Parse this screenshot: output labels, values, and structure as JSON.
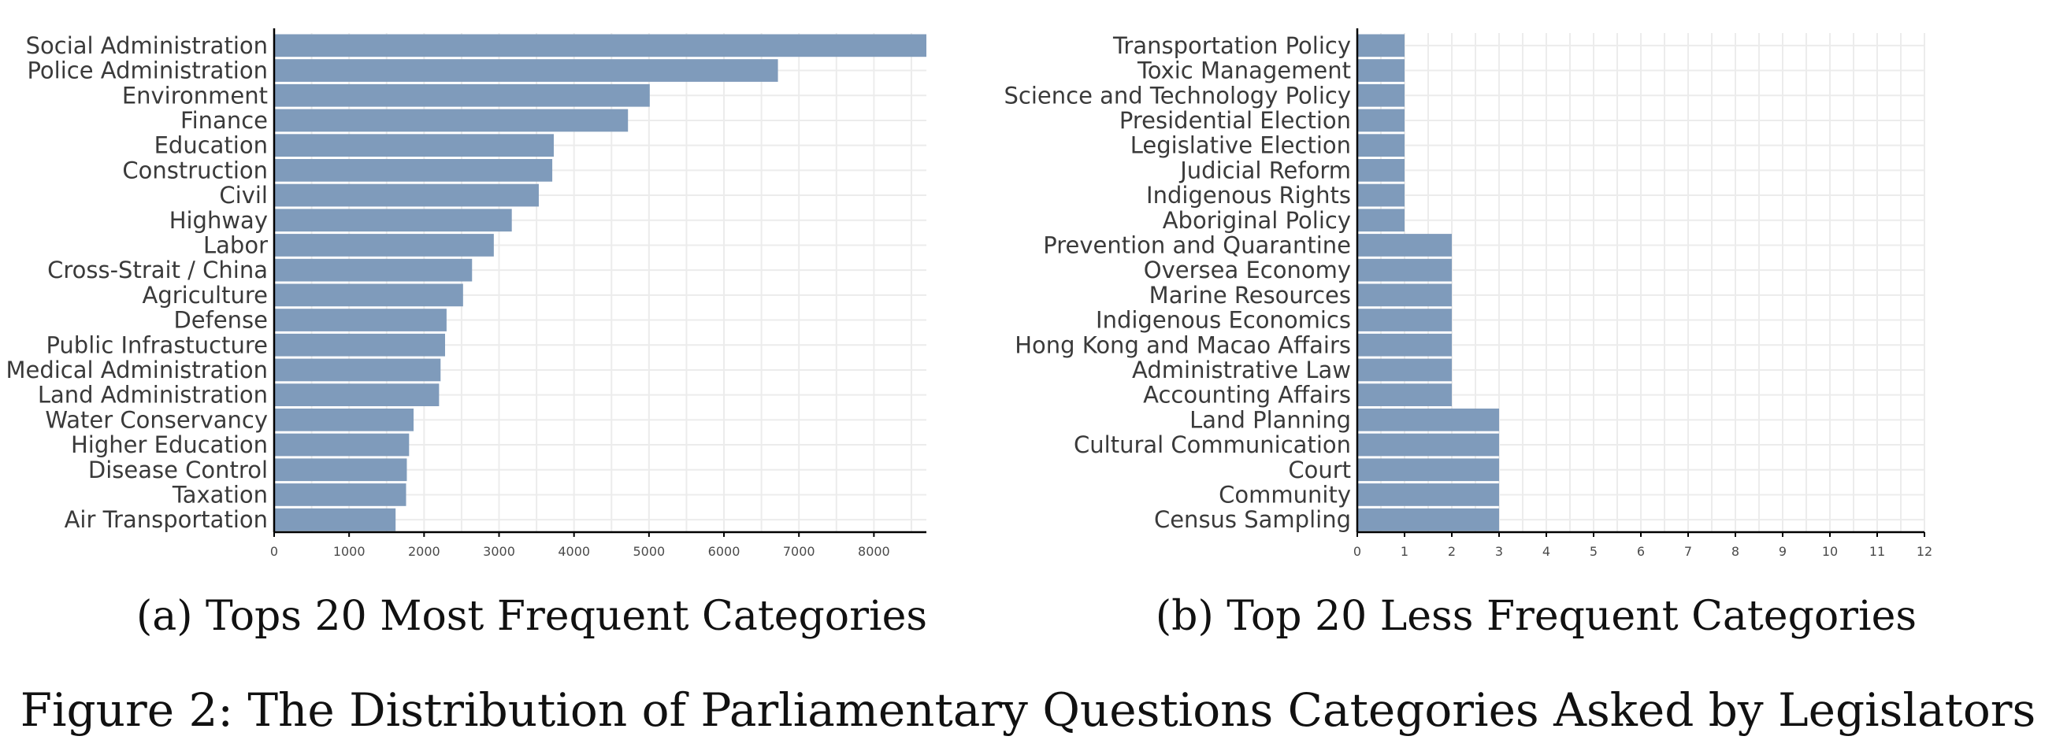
{
  "figure_caption": "Figure 2: The Distribution of Parliamentary Questions Categories Asked by Legislators",
  "chart_data": [
    {
      "type": "bar",
      "orientation": "horizontal",
      "caption": "(a) Tops 20 Most Frequent Categories",
      "title": "",
      "xlabel": "",
      "ylabel": "",
      "xlim": [
        0,
        8700
      ],
      "x_ticks": [
        0,
        1000,
        2000,
        3000,
        4000,
        5000,
        6000,
        7000,
        8000
      ],
      "grid": true,
      "bar_color": "#7f9bbb",
      "categories": [
        "Social Administration",
        "Police Administration",
        "Environment",
        "Finance",
        "Education",
        "Construction",
        "Civil",
        "Highway",
        "Labor",
        "Cross-Strait / China",
        "Agriculture",
        "Defense",
        "Public Infrastucture",
        "Medical Administration",
        "Land Administration",
        "Water Conservancy",
        "Higher Education",
        "Disease Control",
        "Taxation",
        "Air Transportation"
      ],
      "values": [
        8700,
        6720,
        5010,
        4720,
        3730,
        3710,
        3530,
        3170,
        2930,
        2640,
        2520,
        2300,
        2280,
        2220,
        2200,
        1860,
        1800,
        1770,
        1760,
        1620
      ]
    },
    {
      "type": "bar",
      "orientation": "horizontal",
      "caption": "(b) Top 20 Less Frequent Categories",
      "title": "",
      "xlabel": "",
      "ylabel": "",
      "xlim": [
        0,
        12
      ],
      "x_ticks": [
        0,
        1,
        2,
        3,
        4,
        5,
        6,
        7,
        8,
        9,
        10,
        11,
        12
      ],
      "grid": true,
      "bar_color": "#7f9bbb",
      "categories": [
        "Transportation Policy",
        "Toxic Management",
        "Science and Technology Policy",
        "Presidential Election",
        "Legislative Election",
        "Judicial Reform",
        "Indigenous Rights",
        "Aboriginal Policy",
        "Prevention and Quarantine",
        "Oversea Economy",
        "Marine Resources",
        "Indigenous Economics",
        "Hong Kong and Macao Affairs",
        "Administrative Law",
        "Accounting Affairs",
        "Land Planning",
        "Cultural Communication",
        "Court",
        "Community",
        "Census Sampling"
      ],
      "values": [
        1,
        1,
        1,
        1,
        1,
        1,
        1,
        1,
        2,
        2,
        2,
        2,
        2,
        2,
        2,
        3,
        3,
        3,
        3,
        3
      ]
    }
  ]
}
